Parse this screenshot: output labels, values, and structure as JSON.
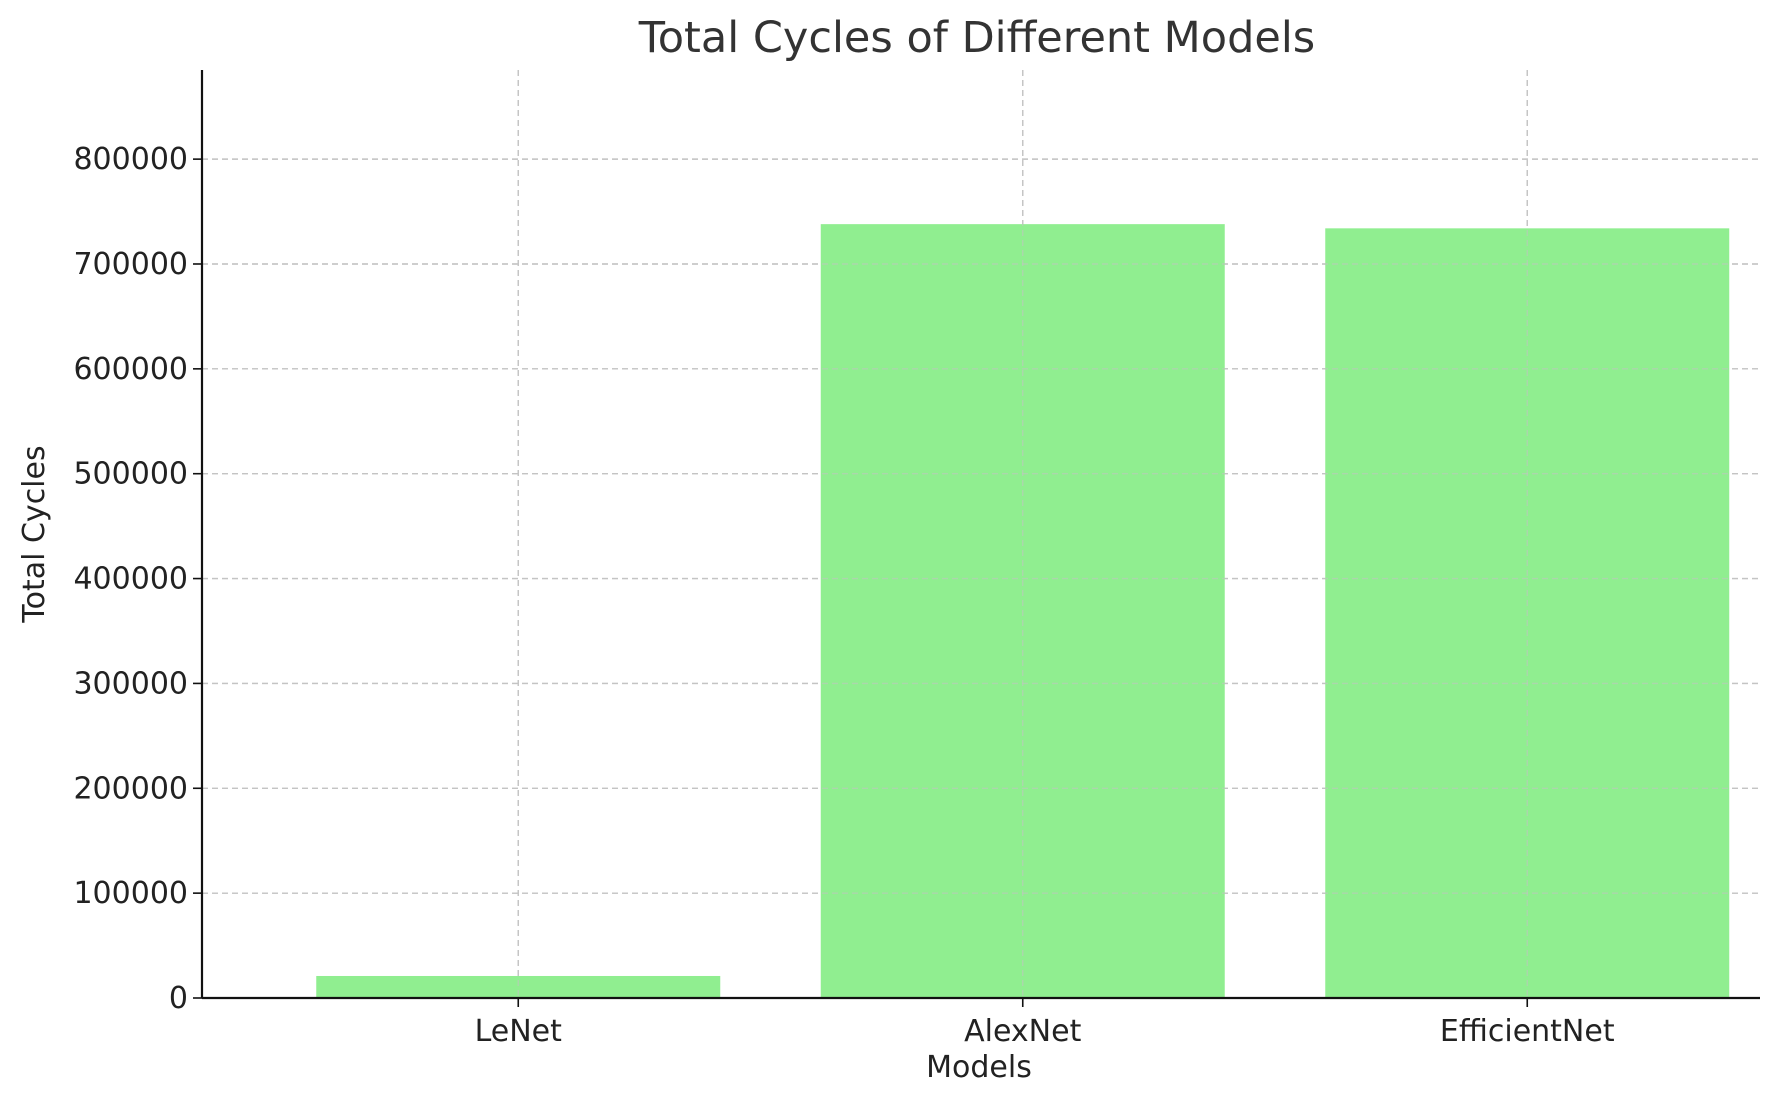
{
  "chart_data": {
    "type": "bar",
    "title": "Total Cycles of Different Models",
    "xlabel": "Models",
    "ylabel": "Total Cycles",
    "categories": [
      "LeNet",
      "AlexNet",
      "EfficientNet"
    ],
    "values": [
      21000,
      738000,
      734000
    ],
    "ylim": [
      0,
      885000
    ],
    "yticks": [
      0,
      100000,
      200000,
      300000,
      400000,
      500000,
      600000,
      700000,
      800000
    ],
    "ytick_labels": [
      "0",
      "100000",
      "200000",
      "300000",
      "400000",
      "500000",
      "600000",
      "700000",
      "800000"
    ],
    "grid": true,
    "bar_color": "#90ee90",
    "text_color": "#222222",
    "title_color": "#333333",
    "grid_color": "#c4c4c4"
  }
}
